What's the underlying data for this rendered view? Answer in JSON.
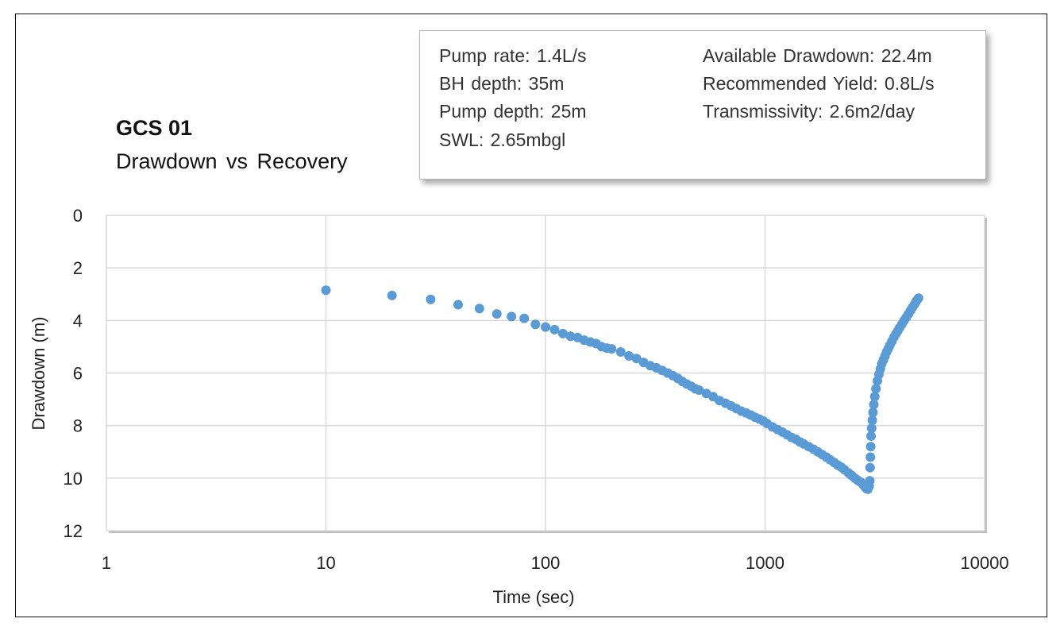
{
  "info_box": {
    "left": [
      "Pump rate: 1.4L/s",
      "BH depth: 35m",
      "Pump depth: 25m",
      "SWL: 2.65mbgl"
    ],
    "right": [
      "Available  Drawdown: 22.4m",
      "Recommended  Yield: 0.8L/s",
      "Transmissivity:  2.6m2/day"
    ]
  },
  "colors": {
    "marker": "#5b9bd5",
    "grid": "#d9d9d9",
    "frame": "#111111"
  },
  "chart_data": {
    "type": "scatter",
    "title": "GCS 01",
    "subtitle": "Drawdown vs Recovery",
    "xlabel": "Time (sec)",
    "ylabel": "Drawdown (m)",
    "x_scale": "log",
    "xlim": [
      1,
      10000
    ],
    "ylim": [
      0,
      12
    ],
    "y_inverted": true,
    "x_ticks": [
      "1",
      "10",
      "100",
      "1000",
      "10000"
    ],
    "y_ticks": [
      "0",
      "2",
      "4",
      "6",
      "8",
      "10",
      "12"
    ],
    "grid": true,
    "legend": "none",
    "points": [
      [
        10,
        2.85
      ],
      [
        20,
        3.05
      ],
      [
        30,
        3.2
      ],
      [
        40,
        3.4
      ],
      [
        50,
        3.55
      ],
      [
        60,
        3.75
      ],
      [
        70,
        3.85
      ],
      [
        80,
        3.92
      ],
      [
        90,
        4.15
      ],
      [
        100,
        4.25
      ],
      [
        110,
        4.35
      ],
      [
        120,
        4.5
      ],
      [
        130,
        4.6
      ],
      [
        140,
        4.65
      ],
      [
        150,
        4.75
      ],
      [
        160,
        4.82
      ],
      [
        170,
        4.88
      ],
      [
        180,
        5.0
      ],
      [
        190,
        5.05
      ],
      [
        200,
        5.08
      ],
      [
        220,
        5.2
      ],
      [
        240,
        5.35
      ],
      [
        260,
        5.45
      ],
      [
        280,
        5.6
      ],
      [
        300,
        5.72
      ],
      [
        320,
        5.8
      ],
      [
        340,
        5.9
      ],
      [
        360,
        6.0
      ],
      [
        380,
        6.1
      ],
      [
        400,
        6.2
      ],
      [
        420,
        6.32
      ],
      [
        440,
        6.42
      ],
      [
        460,
        6.5
      ],
      [
        480,
        6.6
      ],
      [
        500,
        6.65
      ],
      [
        540,
        6.78
      ],
      [
        580,
        6.9
      ],
      [
        620,
        7.05
      ],
      [
        660,
        7.15
      ],
      [
        700,
        7.25
      ],
      [
        740,
        7.35
      ],
      [
        780,
        7.45
      ],
      [
        820,
        7.52
      ],
      [
        860,
        7.6
      ],
      [
        900,
        7.68
      ],
      [
        940,
        7.75
      ],
      [
        980,
        7.82
      ],
      [
        1020,
        7.92
      ],
      [
        1080,
        8.05
      ],
      [
        1140,
        8.15
      ],
      [
        1200,
        8.25
      ],
      [
        1260,
        8.35
      ],
      [
        1320,
        8.45
      ],
      [
        1380,
        8.52
      ],
      [
        1440,
        8.62
      ],
      [
        1500,
        8.7
      ],
      [
        1580,
        8.8
      ],
      [
        1660,
        8.9
      ],
      [
        1740,
        9.0
      ],
      [
        1820,
        9.1
      ],
      [
        1900,
        9.2
      ],
      [
        1980,
        9.3
      ],
      [
        2060,
        9.4
      ],
      [
        2140,
        9.5
      ],
      [
        2220,
        9.58
      ],
      [
        2300,
        9.68
      ],
      [
        2400,
        9.8
      ],
      [
        2480,
        9.9
      ],
      [
        2560,
        10.0
      ],
      [
        2640,
        10.08
      ],
      [
        2720,
        10.15
      ],
      [
        2800,
        10.25
      ],
      [
        2860,
        10.35
      ],
      [
        2900,
        10.4
      ],
      [
        2940,
        10.42
      ],
      [
        2980,
        10.3
      ],
      [
        3000,
        10.1
      ],
      [
        3010,
        9.6
      ],
      [
        3020,
        9.2
      ],
      [
        3030,
        8.8
      ],
      [
        3040,
        8.4
      ],
      [
        3060,
        8.1
      ],
      [
        3080,
        7.8
      ],
      [
        3100,
        7.5
      ],
      [
        3130,
        7.2
      ],
      [
        3160,
        6.9
      ],
      [
        3200,
        6.6
      ],
      [
        3250,
        6.3
      ],
      [
        3300,
        6.05
      ],
      [
        3350,
        5.85
      ],
      [
        3400,
        5.65
      ],
      [
        3460,
        5.5
      ],
      [
        3520,
        5.35
      ],
      [
        3580,
        5.2
      ],
      [
        3640,
        5.08
      ],
      [
        3700,
        4.95
      ],
      [
        3780,
        4.8
      ],
      [
        3860,
        4.65
      ],
      [
        3940,
        4.52
      ],
      [
        4020,
        4.4
      ],
      [
        4100,
        4.28
      ],
      [
        4200,
        4.15
      ],
      [
        4300,
        4.0
      ],
      [
        4400,
        3.88
      ],
      [
        4500,
        3.75
      ],
      [
        4600,
        3.62
      ],
      [
        4700,
        3.5
      ],
      [
        4800,
        3.38
      ],
      [
        4900,
        3.25
      ],
      [
        5000,
        3.15
      ]
    ]
  }
}
